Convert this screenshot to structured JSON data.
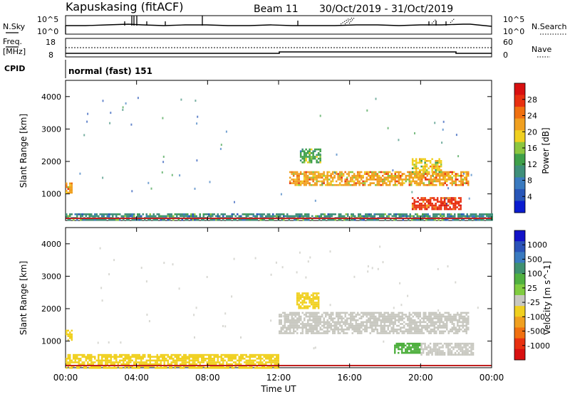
{
  "header": {
    "station": "Kapuskasing (fitACF)",
    "beam": "Beam 11",
    "date_range": "30/Oct/2019 - 31/Oct/2019"
  },
  "panels": {
    "nsky": {
      "label": "N.Sky",
      "left_ticks": [
        "10^5",
        "10^0"
      ],
      "right_ticks": [
        "10^5",
        "10^0"
      ],
      "right_label": "N.Search"
    },
    "freq": {
      "label_top": "Freq.",
      "label_unit": "[MHz]",
      "left_ticks": [
        "18",
        "8"
      ],
      "right_ticks": [
        "60",
        "0"
      ],
      "right_label": "Nave"
    },
    "cpid": {
      "label": "CPID",
      "value": "normal (fast) 151"
    }
  },
  "colors": {
    "power_scale": [
      "#0a1cd0",
      "#2856b8",
      "#3a7abf",
      "#3f8f7a",
      "#3fa04a",
      "#8cc63f",
      "#f0d020",
      "#f0a020",
      "#f07010",
      "#e83010",
      "#d81010"
    ],
    "velocity_scale": [
      "#1212c8",
      "#2a52b8",
      "#3a7abf",
      "#3f9070",
      "#50b040",
      "#80cc40",
      "#c8c8c0",
      "#f0d020",
      "#f0a020",
      "#f07010",
      "#e83010",
      "#d81010"
    ],
    "ground_line": "#c02020"
  },
  "chart_data": [
    {
      "type": "heatmap",
      "name": "power",
      "ylabel": "Slant Range [km]",
      "ylim": [
        180,
        4500
      ],
      "yticks": [
        1000,
        2000,
        3000,
        4000
      ],
      "xlim": [
        0,
        24
      ],
      "colorbar": {
        "label": "Power [dB]",
        "range": [
          0,
          32
        ],
        "ticks": [
          4,
          8,
          12,
          16,
          20,
          24,
          28
        ]
      },
      "features": [
        {
          "t_start": 12.6,
          "t_end": 22.7,
          "range_start": 1300,
          "range_end": 1700,
          "value": 22
        },
        {
          "t_start": 19.5,
          "t_end": 22.3,
          "range_start": 550,
          "range_end": 900,
          "value": 27
        },
        {
          "t_start": 13.2,
          "t_end": 14.4,
          "range_start": 2000,
          "range_end": 2400,
          "value": 14
        },
        {
          "t_start": 0.0,
          "t_end": 0.4,
          "range_start": 1050,
          "range_end": 1350,
          "value": 22
        },
        {
          "t_start": 0.0,
          "t_end": 24.0,
          "range_start": 180,
          "range_end": 400,
          "value": 10
        },
        {
          "t_start": 19.5,
          "t_end": 21.2,
          "range_start": 1700,
          "range_end": 2100,
          "value": 20
        }
      ]
    },
    {
      "type": "heatmap",
      "name": "velocity",
      "ylabel": "Slant Range [km]",
      "ylim": [
        180,
        4500
      ],
      "yticks": [
        1000,
        2000,
        3000,
        4000
      ],
      "xlim": [
        0,
        24
      ],
      "xticks": [
        "00:00",
        "04:00",
        "08:00",
        "12:00",
        "16:00",
        "20:00",
        "00:00"
      ],
      "xlabel": "Time UT",
      "colorbar": {
        "label": "Velocity [m s^-1]",
        "ticks": [
          "1000",
          "500",
          "100",
          "25",
          "-25",
          "-100",
          "-500",
          "-1000"
        ]
      },
      "features": [
        {
          "t_start": 12.0,
          "t_end": 22.7,
          "range_start": 1250,
          "range_end": 1900,
          "value": "0"
        },
        {
          "t_start": 18.5,
          "t_end": 20.0,
          "range_start": 650,
          "range_end": 950,
          "value": "100"
        },
        {
          "t_start": 20.0,
          "t_end": 23.0,
          "range_start": 600,
          "range_end": 950,
          "value": "0"
        },
        {
          "t_start": 13.0,
          "t_end": 14.3,
          "range_start": 2000,
          "range_end": 2500,
          "value": "-100"
        },
        {
          "t_start": 0.0,
          "t_end": 12.0,
          "range_start": 180,
          "range_end": 600,
          "value": "-50"
        },
        {
          "t_start": 0.0,
          "t_end": 0.4,
          "range_start": 1050,
          "range_end": 1350,
          "value": "-50"
        }
      ]
    }
  ]
}
